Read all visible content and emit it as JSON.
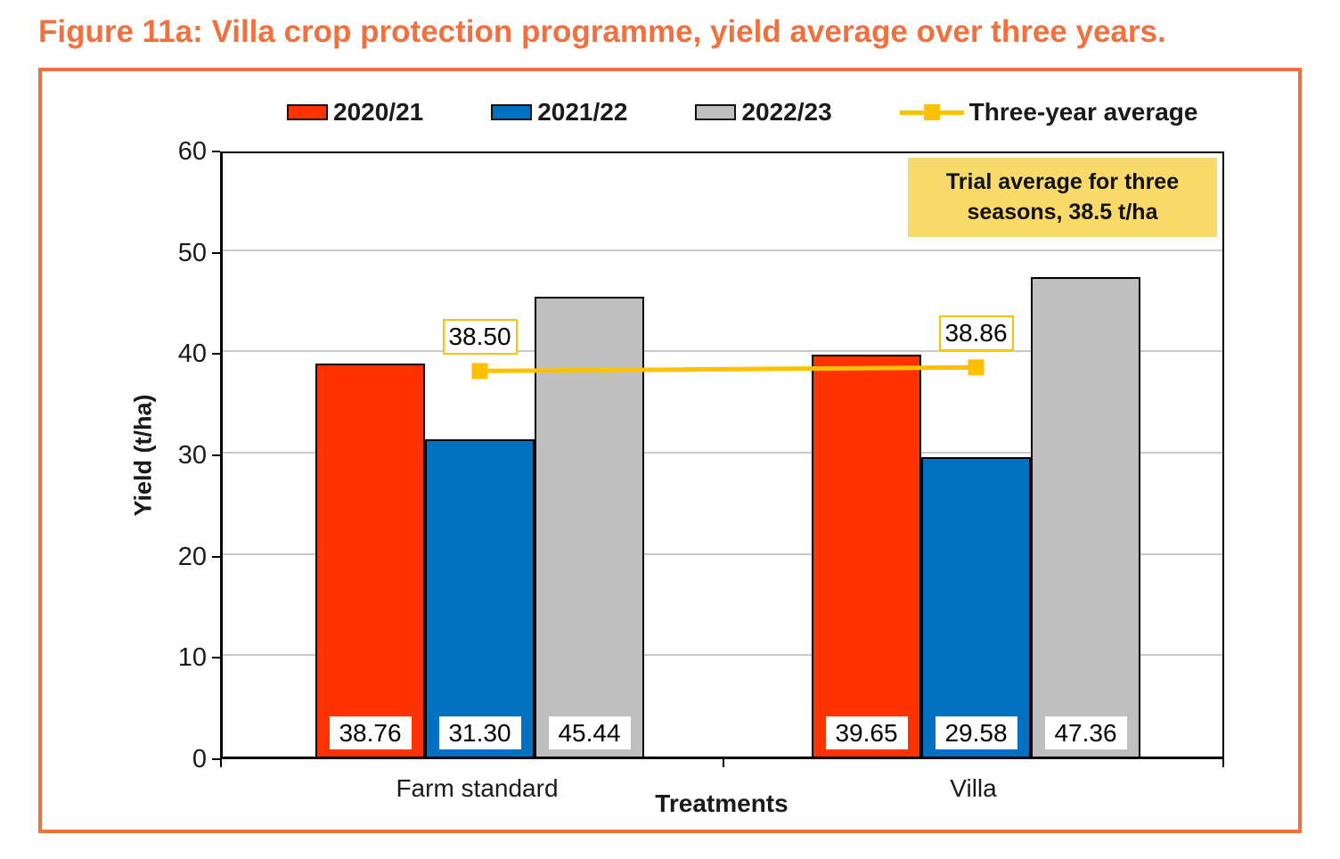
{
  "figure": {
    "title": "Figure 11a: Villa crop protection programme, yield average over three years."
  },
  "colors": {
    "accent_orange": "#F0713F",
    "series_2020_21": "#FF3300",
    "series_2021_22": "#0070C0",
    "series_2022_23": "#BFBFBF",
    "average_line": "#FFC000",
    "annotation_fill": "#FAD96B",
    "gridline": "#C8C8C8"
  },
  "legend": {
    "items": [
      {
        "label": "2020/21",
        "color": "#FF3300",
        "type": "box"
      },
      {
        "label": "2021/22",
        "color": "#0070C0",
        "type": "box"
      },
      {
        "label": "2022/23",
        "color": "#BFBFBF",
        "type": "box"
      },
      {
        "label": "Three-year average",
        "color": "#FFC000",
        "type": "line-marker"
      }
    ]
  },
  "chart_data": {
    "type": "bar",
    "title": "Figure 11a: Villa crop protection programme, yield average over three years.",
    "categories": [
      "Farm standard",
      "Villa"
    ],
    "series": [
      {
        "name": "2020/21",
        "color": "#FF3300",
        "values": [
          38.76,
          39.65
        ]
      },
      {
        "name": "2021/22",
        "color": "#0070C0",
        "values": [
          31.3,
          29.58
        ]
      },
      {
        "name": "2022/23",
        "color": "#BFBFBF",
        "values": [
          45.44,
          47.36
        ]
      }
    ],
    "average_line": {
      "name": "Three-year average",
      "color": "#FFC000",
      "values": [
        38.5,
        38.86
      ]
    },
    "xlabel": "Treatments",
    "ylabel": "Yield (t/ha)",
    "ylim": [
      0,
      60
    ],
    "ytick_step": 10,
    "grid": true,
    "legend_position": "top",
    "annotation": {
      "lines": [
        "Trial average for three",
        "seasons, 38.5 t/ha"
      ],
      "full_text": "Trial average for three seasons, 38.5 t/ha"
    }
  }
}
